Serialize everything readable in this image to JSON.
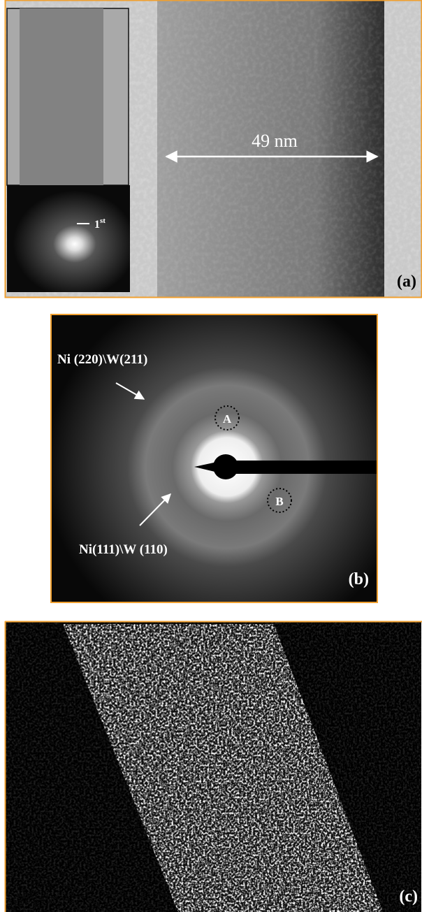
{
  "panel_a": {
    "label": "(a)",
    "scale_label": "49 nm",
    "inset_label": {
      "base": "1",
      "sup": "st"
    }
  },
  "panel_b": {
    "label": "(b)",
    "ring_outer": "Ni (220)\\W(211)",
    "ring_inner": "Ni(111)\\W (110)",
    "spot_a": "A",
    "spot_b": "B"
  },
  "panel_c": {
    "label": "(c)"
  }
}
